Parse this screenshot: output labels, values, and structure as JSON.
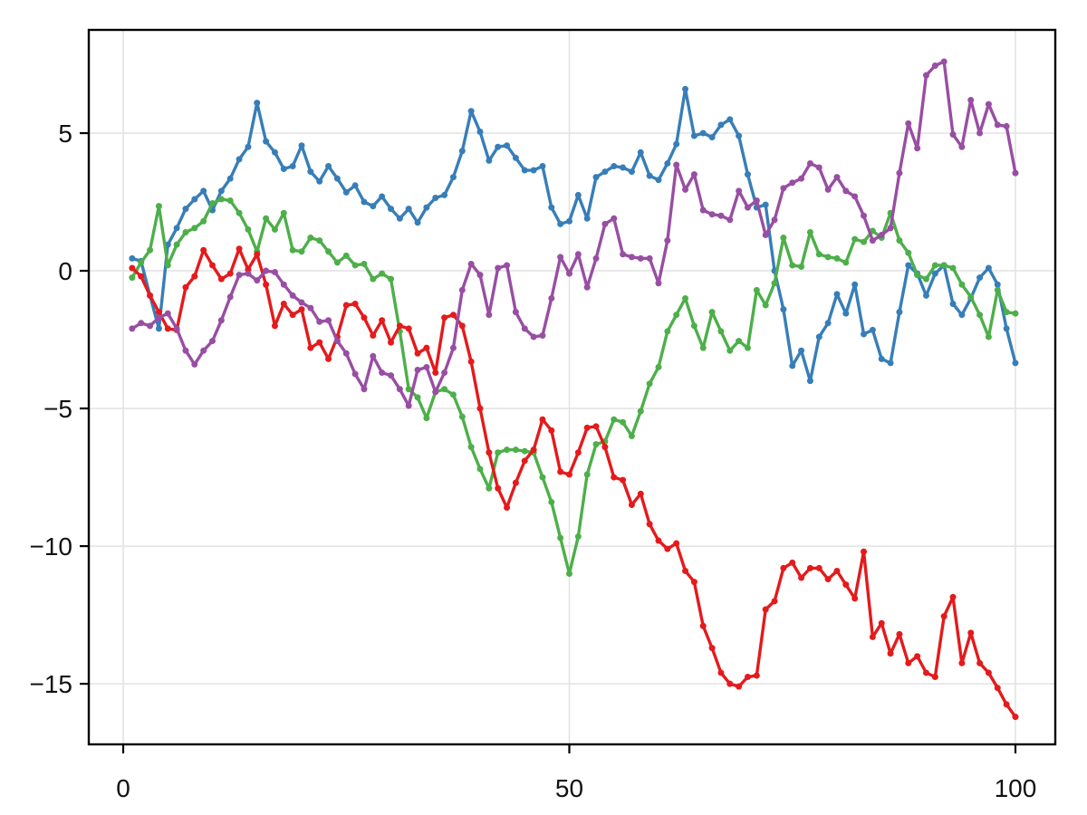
{
  "chart_data": {
    "type": "line",
    "title": "",
    "xlabel": "",
    "ylabel": "",
    "legend": "none",
    "grid": true,
    "x_start": 1,
    "x_step": 1,
    "n_points": 100,
    "xlim": [
      -3.86,
      104.47
    ],
    "ylim": [
      -17.2,
      8.75
    ],
    "xticks": [
      0,
      50,
      100
    ],
    "xtick_labels": [
      "0",
      "50",
      "100"
    ],
    "yticks": [
      5,
      0,
      -5,
      -10,
      -15
    ],
    "ytick_labels": [
      "5",
      "0",
      "−5",
      "−10",
      "−15"
    ],
    "background_color": "#ffffff",
    "grid_color": "#e2e2e2",
    "spine_color": "#000000",
    "tick_color": "#000000",
    "tick_label_color": "#111111",
    "tick_label_size": 28,
    "line_width": 3.4,
    "marker": "circle",
    "marker_radius": 3.5,
    "series": [
      {
        "name": "series-1-blue",
        "color": "#377EB8",
        "values": [
          0.45,
          0.35,
          -0.9,
          -2.1,
          0.95,
          1.55,
          2.25,
          2.6,
          2.9,
          2.2,
          2.9,
          3.35,
          4.05,
          4.5,
          6.1,
          4.7,
          4.3,
          3.7,
          3.8,
          4.55,
          3.6,
          3.25,
          3.8,
          3.35,
          2.85,
          3.1,
          2.5,
          2.35,
          2.7,
          2.25,
          1.9,
          2.25,
          1.75,
          2.3,
          2.65,
          2.75,
          3.4,
          4.35,
          5.8,
          5.05,
          4.0,
          4.5,
          4.55,
          4.1,
          3.65,
          3.65,
          3.8,
          2.3,
          1.7,
          1.8,
          2.75,
          1.9,
          3.4,
          3.6,
          3.8,
          3.75,
          3.6,
          4.3,
          3.45,
          3.3,
          3.9,
          4.6,
          6.6,
          4.9,
          5.0,
          4.85,
          5.3,
          5.5,
          4.9,
          3.5,
          2.3,
          2.4,
          0.0,
          -1.4,
          -3.45,
          -2.9,
          -4.0,
          -2.4,
          -1.9,
          -0.85,
          -1.55,
          -0.5,
          -2.3,
          -2.15,
          -3.2,
          -3.35,
          -1.5,
          0.2,
          -0.1,
          -0.9,
          -0.1,
          0.2,
          -1.2,
          -1.6,
          -1.0,
          -0.25,
          0.1,
          -0.5,
          -2.1,
          -3.35
        ]
      },
      {
        "name": "series-2-green",
        "color": "#4DAF4A",
        "values": [
          -0.25,
          0.3,
          0.75,
          2.35,
          0.2,
          0.95,
          1.4,
          1.55,
          1.8,
          2.45,
          2.6,
          2.55,
          2.1,
          1.5,
          0.7,
          1.9,
          1.5,
          2.1,
          0.75,
          0.7,
          1.2,
          1.1,
          0.7,
          0.3,
          0.55,
          0.2,
          0.25,
          -0.3,
          -0.1,
          -0.3,
          -2.2,
          -4.3,
          -4.6,
          -5.35,
          -4.4,
          -4.3,
          -4.5,
          -5.3,
          -6.4,
          -7.2,
          -7.9,
          -6.6,
          -6.5,
          -6.5,
          -6.55,
          -6.6,
          -7.5,
          -8.4,
          -9.7,
          -11.0,
          -9.65,
          -7.4,
          -6.3,
          -6.2,
          -5.4,
          -5.5,
          -6.0,
          -5.1,
          -4.1,
          -3.5,
          -2.2,
          -1.6,
          -1.0,
          -2.0,
          -2.8,
          -1.5,
          -2.2,
          -2.9,
          -2.55,
          -2.8,
          -0.7,
          -1.25,
          -0.45,
          1.2,
          0.2,
          0.15,
          1.4,
          0.6,
          0.5,
          0.45,
          0.3,
          1.15,
          1.05,
          1.45,
          1.2,
          2.1,
          1.1,
          0.65,
          -0.15,
          -0.3,
          0.2,
          0.2,
          0.1,
          -0.5,
          -0.95,
          -1.6,
          -2.4,
          -0.7,
          -1.5,
          -1.55
        ]
      },
      {
        "name": "series-3-red",
        "color": "#E41A1C",
        "values": [
          0.1,
          -0.2,
          -0.9,
          -1.5,
          -2.1,
          -2.15,
          -0.6,
          -0.2,
          0.75,
          0.2,
          -0.3,
          -0.1,
          0.8,
          0.05,
          0.6,
          -0.5,
          -2.0,
          -1.2,
          -1.6,
          -1.4,
          -2.8,
          -2.6,
          -3.2,
          -2.4,
          -1.25,
          -1.2,
          -1.7,
          -2.35,
          -1.8,
          -2.6,
          -2.0,
          -2.1,
          -3.0,
          -2.8,
          -3.7,
          -1.7,
          -1.6,
          -2.0,
          -3.3,
          -5.0,
          -6.6,
          -7.9,
          -8.6,
          -7.7,
          -6.9,
          -6.5,
          -5.4,
          -5.8,
          -7.3,
          -7.4,
          -6.6,
          -5.7,
          -5.65,
          -6.4,
          -7.5,
          -7.6,
          -8.5,
          -8.1,
          -9.2,
          -9.8,
          -10.1,
          -9.9,
          -10.9,
          -11.3,
          -12.9,
          -13.7,
          -14.6,
          -15.0,
          -15.1,
          -14.75,
          -14.7,
          -12.3,
          -12.0,
          -10.8,
          -10.6,
          -11.15,
          -10.8,
          -10.8,
          -11.2,
          -10.9,
          -11.4,
          -11.9,
          -10.2,
          -13.3,
          -12.8,
          -13.9,
          -13.2,
          -14.25,
          -14.0,
          -14.6,
          -14.75,
          -12.55,
          -11.85,
          -14.25,
          -13.15,
          -14.25,
          -14.6,
          -15.15,
          -15.75,
          -16.2
        ]
      },
      {
        "name": "series-4-purple",
        "color": "#984EA3",
        "values": [
          -2.1,
          -1.9,
          -2.0,
          -1.7,
          -1.55,
          -2.1,
          -2.9,
          -3.4,
          -2.9,
          -2.55,
          -1.8,
          -0.95,
          -0.15,
          -0.1,
          -0.35,
          0.0,
          -0.05,
          -0.5,
          -0.9,
          -1.15,
          -1.35,
          -1.85,
          -1.8,
          -2.55,
          -3.0,
          -3.75,
          -4.3,
          -3.1,
          -3.7,
          -3.8,
          -4.3,
          -4.9,
          -3.6,
          -3.5,
          -4.4,
          -3.7,
          -2.8,
          -0.7,
          0.25,
          -0.15,
          -1.6,
          0.1,
          0.2,
          -1.5,
          -2.1,
          -2.4,
          -2.35,
          -1.0,
          0.5,
          -0.1,
          0.6,
          -0.6,
          0.45,
          1.7,
          1.9,
          0.6,
          0.5,
          0.45,
          0.45,
          -0.45,
          1.1,
          3.85,
          2.95,
          3.5,
          2.2,
          2.05,
          2.0,
          1.85,
          2.9,
          2.3,
          2.55,
          1.3,
          1.85,
          3.0,
          3.2,
          3.35,
          3.9,
          3.75,
          2.95,
          3.4,
          2.9,
          2.7,
          2.0,
          1.1,
          1.3,
          1.55,
          3.55,
          5.35,
          4.45,
          7.1,
          7.45,
          7.6,
          4.95,
          4.5,
          6.2,
          5.0,
          6.05,
          5.3,
          5.25,
          3.55
        ]
      }
    ]
  }
}
